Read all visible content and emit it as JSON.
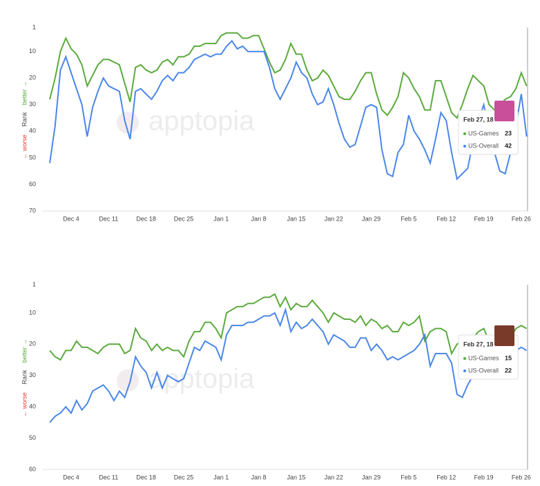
{
  "chart_data": [
    {
      "type": "line",
      "y_label": "Rank",
      "y_label_better": "better →",
      "y_label_worse": "← worse",
      "watermark": "apptopia",
      "tooltip_date": "Feb 27, 18",
      "inverted": true,
      "grid": false,
      "ylim": [
        1,
        70
      ],
      "yticks": [
        1,
        10,
        20,
        30,
        40,
        50,
        60,
        70
      ],
      "categories": [
        null,
        null,
        null,
        null,
        "Dec 4",
        null,
        null,
        null,
        null,
        null,
        null,
        "Dec 11",
        null,
        null,
        null,
        null,
        null,
        null,
        "Dec 18",
        null,
        null,
        null,
        null,
        null,
        null,
        "Dec 25",
        null,
        null,
        null,
        null,
        null,
        null,
        "Jan 1",
        null,
        null,
        null,
        null,
        null,
        null,
        "Jan 8",
        null,
        null,
        null,
        null,
        null,
        null,
        "Jan 15",
        null,
        null,
        null,
        null,
        null,
        null,
        "Jan 22",
        null,
        null,
        null,
        null,
        null,
        null,
        "Jan 29",
        null,
        null,
        null,
        null,
        null,
        null,
        "Feb 5",
        null,
        null,
        null,
        null,
        null,
        null,
        "Feb 12",
        null,
        null,
        null,
        null,
        null,
        null,
        "Feb 19",
        null,
        null,
        null,
        null,
        null,
        null,
        "Feb 26",
        null
      ],
      "series": [
        {
          "name": "US-Games",
          "color": "#5aaa3c",
          "values": [
            28,
            20,
            10,
            5,
            9,
            11,
            15,
            23,
            19,
            15,
            13,
            13,
            14,
            15,
            22,
            29,
            16,
            15,
            17,
            18,
            17,
            14,
            13,
            15,
            12,
            12,
            11,
            8,
            8,
            7,
            7,
            7,
            4,
            3,
            3,
            3,
            5,
            5,
            4,
            4,
            9,
            14,
            18,
            17,
            13,
            7,
            11,
            11,
            17,
            21,
            20,
            17,
            19,
            23,
            27,
            28,
            28,
            25,
            21,
            18,
            18,
            26,
            32,
            34,
            31,
            27,
            18,
            20,
            24,
            27,
            32,
            32,
            21,
            21,
            27,
            33,
            35,
            30,
            24,
            19,
            21,
            23,
            30,
            32,
            30,
            28,
            27,
            24,
            18,
            23
          ]
        },
        {
          "name": "US-Overall",
          "color": "#4a86e8",
          "values": [
            52,
            38,
            17,
            12,
            18,
            24,
            30,
            42,
            31,
            25,
            20,
            23,
            24,
            25,
            36,
            43,
            25,
            24,
            26,
            28,
            25,
            21,
            19,
            21,
            18,
            18,
            16,
            13,
            12,
            11,
            12,
            11,
            11,
            8,
            6,
            9,
            8,
            10,
            10,
            10,
            10,
            16,
            24,
            28,
            24,
            20,
            14,
            18,
            20,
            26,
            30,
            29,
            24,
            30,
            37,
            43,
            46,
            45,
            38,
            31,
            30,
            31,
            47,
            56,
            57,
            48,
            45,
            34,
            40,
            43,
            47,
            52,
            43,
            33,
            36,
            48,
            58,
            56,
            54,
            44,
            36,
            30,
            40,
            48,
            55,
            56,
            48,
            38,
            26,
            42
          ]
        }
      ]
    },
    {
      "type": "line",
      "y_label": "Rank",
      "y_label_better": "better →",
      "y_label_worse": "← worse",
      "watermark": "apptopia",
      "tooltip_date": "Feb 27, 18",
      "inverted": true,
      "grid": false,
      "ylim": [
        1,
        60
      ],
      "yticks": [
        1,
        10,
        20,
        30,
        40,
        50,
        60
      ],
      "categories": [
        null,
        null,
        null,
        null,
        "Dec 4",
        null,
        null,
        null,
        null,
        null,
        null,
        "Dec 11",
        null,
        null,
        null,
        null,
        null,
        null,
        "Dec 18",
        null,
        null,
        null,
        null,
        null,
        null,
        "Dec 25",
        null,
        null,
        null,
        null,
        null,
        null,
        "Jan 1",
        null,
        null,
        null,
        null,
        null,
        null,
        "Jan 8",
        null,
        null,
        null,
        null,
        null,
        null,
        "Jan 15",
        null,
        null,
        null,
        null,
        null,
        null,
        "Jan 22",
        null,
        null,
        null,
        null,
        null,
        null,
        "Jan 29",
        null,
        null,
        null,
        null,
        null,
        null,
        "Feb 5",
        null,
        null,
        null,
        null,
        null,
        null,
        "Feb 12",
        null,
        null,
        null,
        null,
        null,
        null,
        "Feb 19",
        null,
        null,
        null,
        null,
        null,
        null,
        "Feb 26",
        null
      ],
      "series": [
        {
          "name": "US-Games",
          "color": "#5aaa3c",
          "values": [
            22,
            24,
            25,
            22,
            22,
            19,
            21,
            21,
            22,
            23,
            21,
            20,
            20,
            20,
            23,
            22,
            15,
            18,
            19,
            22,
            20,
            22,
            21,
            22,
            22,
            24,
            19,
            16,
            16,
            13,
            13,
            15,
            18,
            10,
            9,
            8,
            8,
            7,
            7,
            6,
            5,
            5,
            4,
            8,
            5,
            9,
            7,
            8,
            8,
            6,
            8,
            10,
            13,
            10,
            11,
            12,
            12,
            13,
            11,
            14,
            12,
            13,
            15,
            14,
            16,
            16,
            13,
            14,
            13,
            11,
            19,
            16,
            15,
            15,
            16,
            23,
            20,
            19,
            18,
            18,
            16,
            15,
            19,
            20,
            19,
            17,
            18,
            15,
            14,
            15
          ]
        },
        {
          "name": "US-Overall",
          "color": "#4a86e8",
          "values": [
            45,
            43,
            42,
            40,
            42,
            38,
            41,
            39,
            35,
            34,
            33,
            35,
            38,
            35,
            37,
            32,
            24,
            27,
            29,
            34,
            29,
            34,
            30,
            31,
            32,
            31,
            26,
            21,
            22,
            19,
            20,
            21,
            25,
            17,
            14,
            14,
            14,
            13,
            13,
            12,
            11,
            11,
            10,
            14,
            9,
            16,
            13,
            15,
            14,
            12,
            14,
            16,
            20,
            17,
            18,
            19,
            21,
            21,
            18,
            18,
            22,
            20,
            22,
            25,
            24,
            25,
            24,
            23,
            22,
            20,
            17,
            27,
            23,
            23,
            23,
            26,
            36,
            37,
            33,
            30,
            28,
            27,
            24,
            22,
            23,
            22,
            23,
            22,
            21,
            22
          ]
        }
      ]
    }
  ]
}
